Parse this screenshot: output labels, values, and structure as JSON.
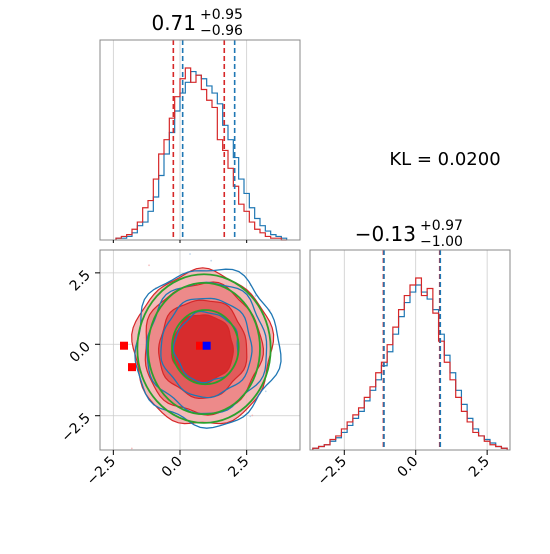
{
  "colors": {
    "blue": "#1f77b4",
    "red": "#d62728",
    "green": "#2ca02c",
    "marker_blue": "#0000ff",
    "marker_red": "#ff0000",
    "grid": "#cccccc",
    "frame": "#888888"
  },
  "kl_text": "KL = 0.0200",
  "chart_data": [
    {
      "type": "histogram",
      "panel": "marginal-x",
      "title": {
        "value": "0.71",
        "sup": "+0.95",
        "sub": "−0.96"
      },
      "xlim": [
        -3.0,
        4.5
      ],
      "grid": true,
      "bins": [
        -2.4,
        -2.2,
        -2.0,
        -1.8,
        -1.6,
        -1.4,
        -1.2,
        -1.0,
        -0.8,
        -0.6,
        -0.4,
        -0.2,
        0.0,
        0.2,
        0.4,
        0.6,
        0.8,
        1.0,
        1.2,
        1.4,
        1.6,
        1.8,
        2.0,
        2.2,
        2.4,
        2.6,
        2.8,
        3.0,
        3.2,
        3.4,
        3.6,
        3.8,
        4.0
      ],
      "series": [
        {
          "color_key": "blue",
          "counts": [
            1,
            1,
            2,
            4,
            8,
            10,
            16,
            24,
            36,
            48,
            60,
            72,
            82,
            88,
            94,
            92,
            90,
            86,
            82,
            76,
            64,
            56,
            46,
            34,
            26,
            18,
            12,
            8,
            5,
            3,
            2,
            1
          ]
        },
        {
          "color_key": "red",
          "counts": [
            1,
            2,
            3,
            6,
            10,
            18,
            22,
            34,
            48,
            56,
            68,
            80,
            90,
            96,
            88,
            92,
            84,
            78,
            74,
            56,
            50,
            40,
            30,
            20,
            16,
            10,
            6,
            4,
            2,
            1,
            1,
            0
          ]
        }
      ],
      "vlines": [
        {
          "x": -0.25,
          "color_key": "red"
        },
        {
          "x": 0.1,
          "color_key": "blue"
        },
        {
          "x": 1.66,
          "color_key": "red"
        },
        {
          "x": 2.05,
          "color_key": "blue"
        }
      ]
    },
    {
      "type": "scatter",
      "panel": "joint",
      "xlim": [
        -3.0,
        4.5
      ],
      "ylim": [
        -3.7,
        3.3
      ],
      "grid": true,
      "xticks": [
        "−2.5",
        "0.0",
        "2.5"
      ],
      "yticks": [
        "2.5",
        "0.0",
        "−2.5"
      ],
      "blue_marker": [
        1.0,
        -0.05
      ],
      "red_markers": [
        [
          -2.1,
          -0.05
        ],
        [
          -1.8,
          -0.8
        ],
        [
          0.75,
          -0.05
        ]
      ],
      "ellipses": [
        {
          "cx": 0.95,
          "cy": -0.1,
          "rx": 1.25,
          "ry": 1.3,
          "color_key": "green"
        },
        {
          "cx": 0.9,
          "cy": -0.15,
          "rx": 2.1,
          "ry": 2.3,
          "color_key": "green"
        },
        {
          "cx": 0.9,
          "cy": -0.15,
          "rx": 2.5,
          "ry": 2.6,
          "color_key": "green"
        }
      ]
    },
    {
      "type": "histogram",
      "panel": "marginal-y",
      "title": {
        "value": "−0.13",
        "sup": "+0.97",
        "sub": "−1.00"
      },
      "xlim": [
        -3.7,
        3.3
      ],
      "grid": true,
      "xticks": [
        "−2.5",
        "0.0",
        "2.5"
      ],
      "bins": [
        -3.6,
        -3.4,
        -3.2,
        -3.0,
        -2.8,
        -2.6,
        -2.4,
        -2.2,
        -2.0,
        -1.8,
        -1.6,
        -1.4,
        -1.2,
        -1.0,
        -0.8,
        -0.6,
        -0.4,
        -0.2,
        0.0,
        0.2,
        0.4,
        0.6,
        0.8,
        1.0,
        1.2,
        1.4,
        1.6,
        1.8,
        2.0,
        2.2,
        2.4,
        2.6,
        2.8,
        3.0,
        3.2
      ],
      "series": [
        {
          "color_key": "blue",
          "counts": [
            1,
            2,
            3,
            5,
            7,
            10,
            14,
            18,
            22,
            28,
            34,
            40,
            48,
            56,
            66,
            76,
            84,
            90,
            94,
            90,
            86,
            80,
            66,
            54,
            44,
            34,
            26,
            18,
            12,
            8,
            6,
            4,
            2,
            1
          ]
        },
        {
          "color_key": "red",
          "counts": [
            1,
            2,
            3,
            6,
            8,
            12,
            16,
            20,
            24,
            30,
            36,
            44,
            50,
            60,
            70,
            80,
            88,
            94,
            98,
            88,
            92,
            78,
            62,
            50,
            40,
            30,
            22,
            16,
            10,
            8,
            5,
            3,
            2,
            1
          ]
        }
      ],
      "vlines": [
        {
          "x": -1.13,
          "color_key": "red"
        },
        {
          "x": -1.11,
          "color_key": "blue"
        },
        {
          "x": 0.84,
          "color_key": "red"
        },
        {
          "x": 0.86,
          "color_key": "blue"
        }
      ]
    }
  ]
}
